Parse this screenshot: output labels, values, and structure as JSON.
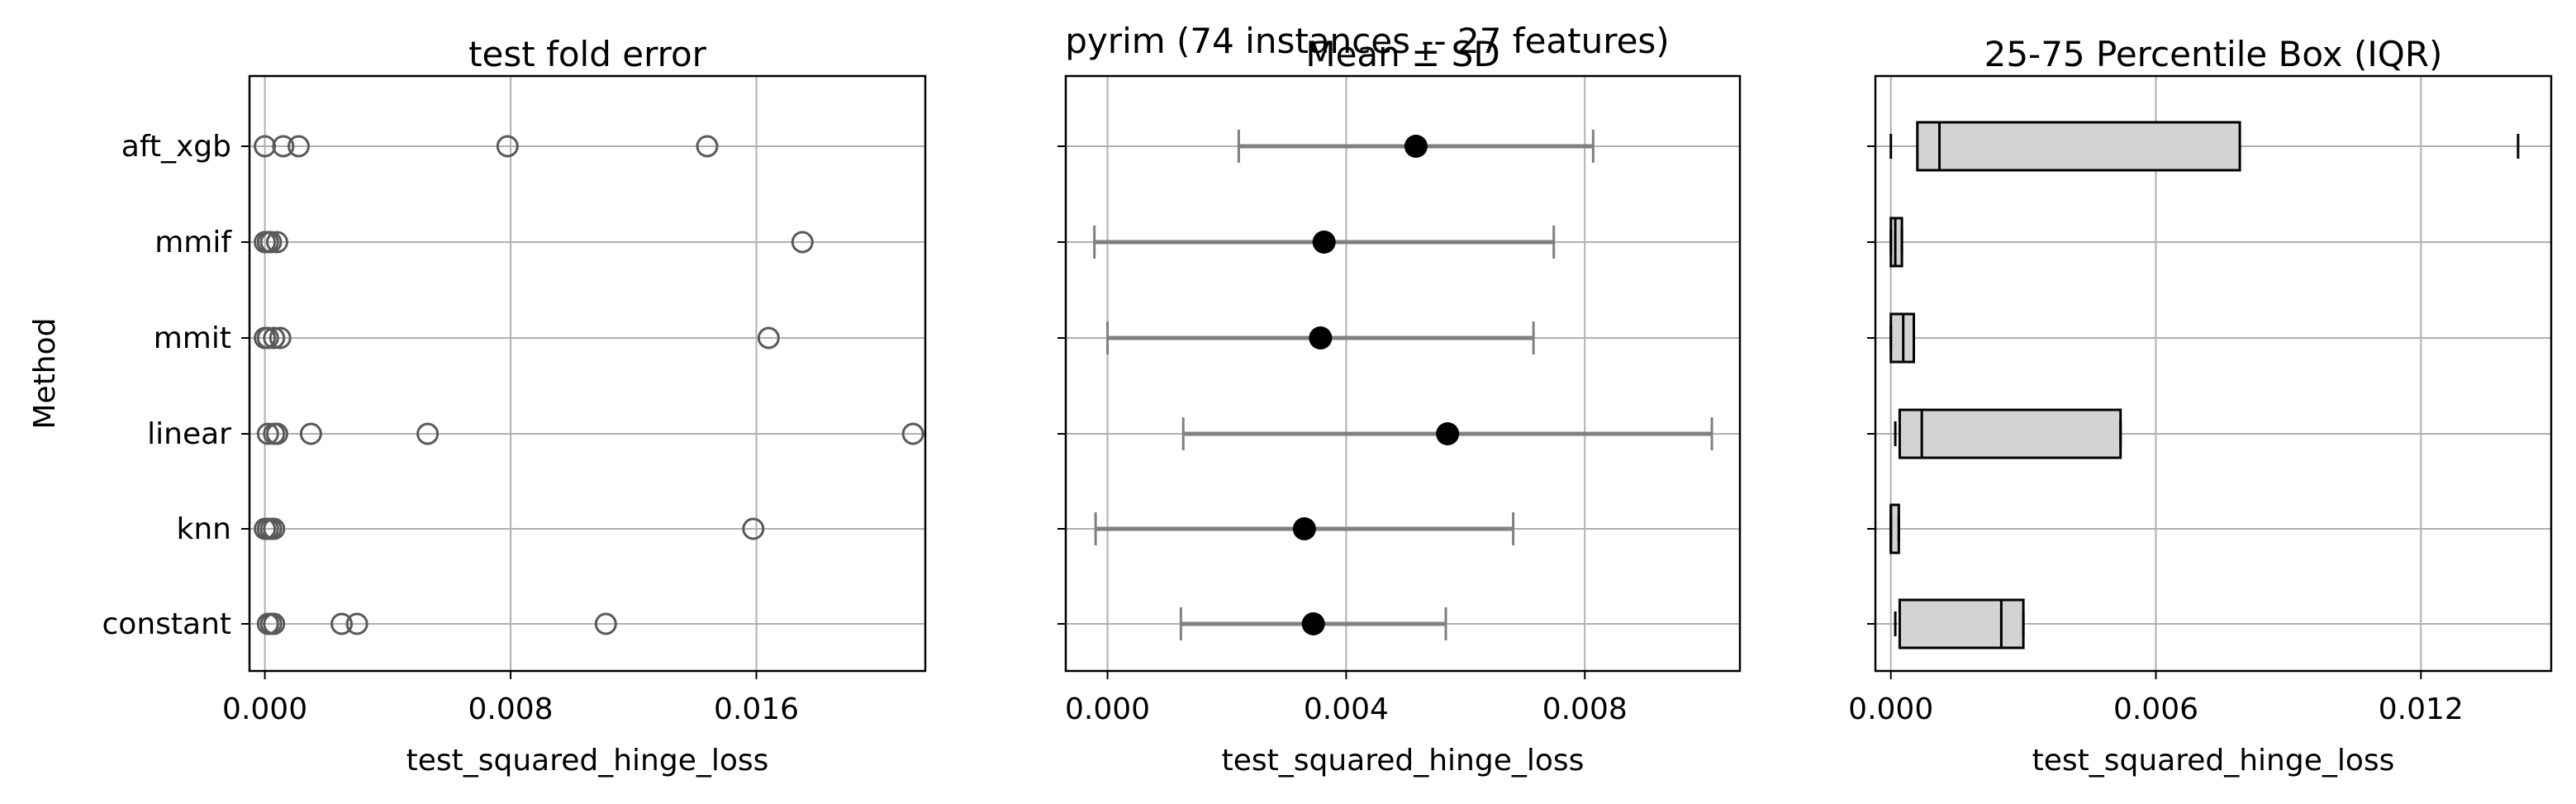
{
  "suptitle": "pyrim (74 instances -- 27 features)",
  "chart_data": [
    {
      "type": "scatter",
      "title": "test fold error",
      "xlabel": "test_squared_hinge_loss",
      "ylabel": "Method",
      "categories": [
        "aft_xgb",
        "mmif",
        "mmit",
        "linear",
        "knn",
        "constant"
      ],
      "xlim": [
        -0.0005,
        0.0215
      ],
      "xticks": [
        0.0,
        0.008,
        0.016
      ],
      "xtick_labels": [
        "0.000",
        "0.008",
        "0.016"
      ],
      "grid": true,
      "points": {
        "aft_xgb": [
          0.0,
          0.0006,
          0.0011,
          0.0079,
          0.0144
        ],
        "mmif": [
          0.0,
          0.0001,
          0.0002,
          0.0004,
          0.0175
        ],
        "mmit": [
          0.0,
          0.0001,
          0.0003,
          0.0005,
          0.0164
        ],
        "linear": [
          0.0001,
          0.0003,
          0.0004,
          0.0015,
          0.0053,
          0.0211
        ],
        "knn": [
          0.0,
          0.0001,
          0.0002,
          0.0003,
          0.0159
        ],
        "constant": [
          0.0001,
          0.0002,
          0.0003,
          0.0025,
          0.003,
          0.0111
        ]
      }
    },
    {
      "type": "errorbar",
      "title": "Mean ± SD",
      "xlabel": "test_squared_hinge_loss",
      "categories": [
        "aft_xgb",
        "mmif",
        "mmit",
        "linear",
        "knn",
        "constant"
      ],
      "xlim": [
        -0.0007,
        0.0106
      ],
      "xticks": [
        0.0,
        0.004,
        0.008
      ],
      "xtick_labels": [
        "0.000",
        "0.004",
        "0.008"
      ],
      "grid": true,
      "series": [
        {
          "category": "aft_xgb",
          "mean": 0.00517,
          "sd": 0.00297
        },
        {
          "category": "mmif",
          "mean": 0.00363,
          "sd": 0.00385
        },
        {
          "category": "mmit",
          "mean": 0.00357,
          "sd": 0.00357
        },
        {
          "category": "linear",
          "mean": 0.0057,
          "sd": 0.00443
        },
        {
          "category": "knn",
          "mean": 0.0033,
          "sd": 0.0035
        },
        {
          "category": "constant",
          "mean": 0.00345,
          "sd": 0.00222
        }
      ]
    },
    {
      "type": "box",
      "title": "25-75 Percentile Box (IQR)",
      "xlabel": "test_squared_hinge_loss",
      "categories": [
        "aft_xgb",
        "mmif",
        "mmit",
        "linear",
        "knn",
        "constant"
      ],
      "xlim": [
        -0.00035,
        0.01495
      ],
      "xticks": [
        0.0,
        0.006,
        0.012
      ],
      "xtick_labels": [
        "0.000",
        "0.006",
        "0.012"
      ],
      "grid": true,
      "boxes": [
        {
          "category": "aft_xgb",
          "whisker_low": 0.0,
          "q1": 0.0006,
          "median": 0.0011,
          "q3": 0.0079,
          "whisker_high": 0.0142
        },
        {
          "category": "mmif",
          "whisker_low": 0.0,
          "q1": 0.0,
          "median": 0.0001,
          "q3": 0.00025,
          "whisker_high": 0.00025
        },
        {
          "category": "mmit",
          "whisker_low": 0.0,
          "q1": 0.0,
          "median": 0.00028,
          "q3": 0.00052,
          "whisker_high": 0.00052
        },
        {
          "category": "linear",
          "whisker_low": 0.0001,
          "q1": 0.0002,
          "median": 0.0007,
          "q3": 0.0052,
          "whisker_high": 0.0052
        },
        {
          "category": "knn",
          "whisker_low": 0.0,
          "q1": 0.0,
          "median": 0.0,
          "q3": 0.00018,
          "whisker_high": 0.00018
        },
        {
          "category": "constant",
          "whisker_low": 0.0001,
          "q1": 0.0002,
          "median": 0.0025,
          "q3": 0.003,
          "whisker_high": 0.003
        }
      ]
    }
  ]
}
